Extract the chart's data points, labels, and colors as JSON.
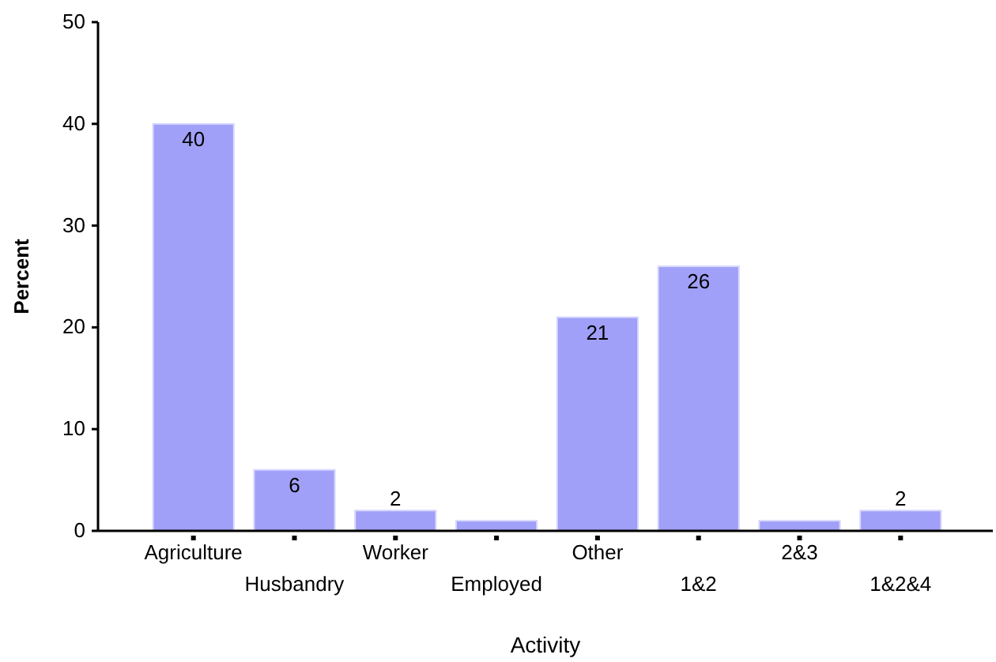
{
  "chart_data": {
    "type": "bar",
    "xlabel": "Activity",
    "ylabel": "Percent",
    "categories": [
      "Agriculture",
      "Husbandry",
      "Worker",
      "Employed",
      "Other",
      "1&2",
      "2&3",
      "1&2&4"
    ],
    "values": [
      40,
      6,
      2,
      1,
      21,
      26,
      1,
      2
    ],
    "value_labels": [
      "40",
      "6",
      "2",
      null,
      "21",
      "26",
      null,
      "2"
    ],
    "color": "#a0a0f8",
    "ylim": [
      0,
      50
    ],
    "yticks": [
      0,
      10,
      20,
      30,
      40,
      50
    ],
    "grid": false
  }
}
